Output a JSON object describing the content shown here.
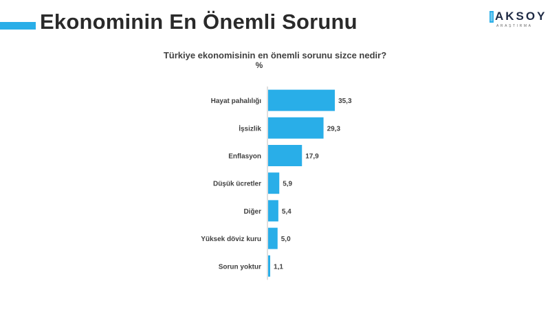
{
  "header": {
    "title": "Ekonominin En Önemli Sorunu"
  },
  "logo": {
    "name": "AKSOY",
    "subtitle": "ARAŞTIRMA"
  },
  "colors": {
    "accent": "#29aee8",
    "bar": "#29aee8",
    "axis": "#bfbfbf",
    "text": "#404040"
  },
  "chart_data": {
    "type": "bar",
    "orientation": "horizontal",
    "title": "Türkiye ekonomisinin en önemli sorunu sizce nedir?",
    "unit": "%",
    "categories": [
      "Hayat pahalılığı",
      "İşsizlik",
      "Enflasyon",
      "Düşük ücretler",
      "Diğer",
      "Yüksek döviz kuru",
      "Sorun yoktur"
    ],
    "values": [
      35.3,
      29.3,
      17.9,
      5.9,
      5.4,
      5.0,
      1.1
    ],
    "value_labels": [
      "35,3",
      "29,3",
      "17,9",
      "5,9",
      "5,4",
      "5,0",
      "1,1"
    ],
    "xlim": [
      0,
      40
    ],
    "grid": false,
    "legend": "none"
  }
}
